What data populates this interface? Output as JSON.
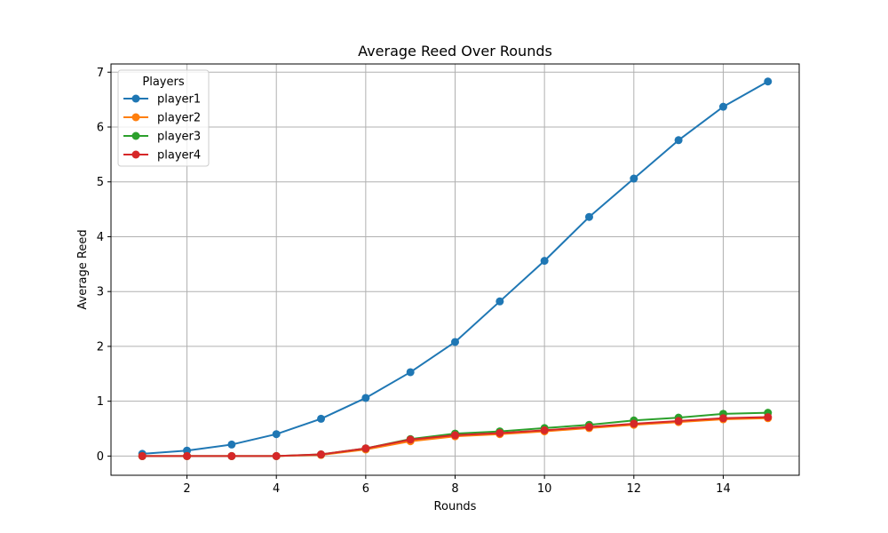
{
  "chart_data": {
    "type": "line",
    "title": "Average Reed Over Rounds",
    "xlabel": "Rounds",
    "ylabel": "Average Reed",
    "x": [
      1,
      2,
      3,
      4,
      5,
      6,
      7,
      8,
      9,
      10,
      11,
      12,
      13,
      14,
      15
    ],
    "xlim": [
      0.3,
      15.7
    ],
    "ylim": [
      -0.35,
      7.15
    ],
    "xticks": [
      2,
      4,
      6,
      8,
      10,
      12,
      14
    ],
    "yticks": [
      0,
      1,
      2,
      3,
      4,
      5,
      6,
      7
    ],
    "grid": true,
    "legend": {
      "title": "Players",
      "placement": "top-left"
    },
    "series": [
      {
        "name": "player1",
        "color": "#1f77b4",
        "values": [
          0.04,
          0.1,
          0.21,
          0.4,
          0.68,
          1.06,
          1.53,
          2.08,
          2.82,
          3.56,
          4.36,
          5.06,
          5.76,
          6.37,
          6.83
        ]
      },
      {
        "name": "player2",
        "color": "#ff7f0e",
        "values": [
          0.0,
          0.0,
          0.0,
          0.0,
          0.02,
          0.12,
          0.27,
          0.36,
          0.4,
          0.45,
          0.51,
          0.57,
          0.62,
          0.67,
          0.69
        ]
      },
      {
        "name": "player3",
        "color": "#2ca02c",
        "values": [
          0.0,
          0.0,
          0.0,
          0.0,
          0.03,
          0.14,
          0.31,
          0.41,
          0.45,
          0.51,
          0.57,
          0.65,
          0.7,
          0.77,
          0.79
        ]
      },
      {
        "name": "player4",
        "color": "#d62728",
        "values": [
          0.0,
          0.0,
          0.0,
          0.0,
          0.03,
          0.14,
          0.3,
          0.38,
          0.42,
          0.47,
          0.53,
          0.59,
          0.64,
          0.69,
          0.71
        ]
      }
    ]
  }
}
